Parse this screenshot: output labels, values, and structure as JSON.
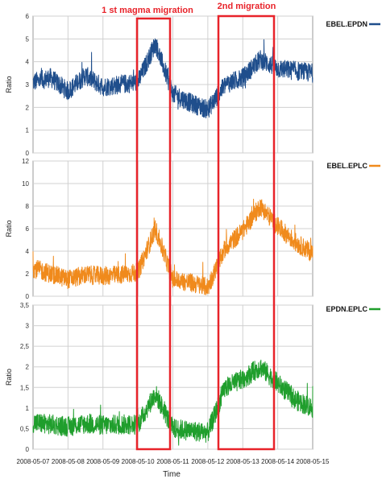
{
  "annotations": {
    "first_migration": "1 st magma migration",
    "second_migration": "2nd migration",
    "highlight_color": "#e8232a"
  },
  "x_axis": {
    "label": "Time",
    "tick_labels": [
      "2008-05-07",
      "2008-05-08",
      "2008-05-09",
      "2008-05-10",
      "2008-05-11",
      "2008-05-12",
      "2008-05-13",
      "2008-05-14",
      "2008-05-15"
    ]
  },
  "chart_data": [
    {
      "type": "line",
      "series": [
        {
          "name": "EBEL.EPDN",
          "color": "#1f4e8c"
        }
      ],
      "ylabel": "Ratio",
      "ylim": [
        0,
        6
      ],
      "y_ticks": [
        "0",
        "1",
        "2",
        "3",
        "4",
        "5",
        "6"
      ],
      "grid": true,
      "legend_position": "right",
      "x": [
        "2008-05-07",
        "2008-05-07T12",
        "2008-05-08",
        "2008-05-08T12",
        "2008-05-09",
        "2008-05-09T12",
        "2008-05-10",
        "2008-05-10T12",
        "2008-05-11",
        "2008-05-11T12",
        "2008-05-12",
        "2008-05-12T12",
        "2008-05-13",
        "2008-05-13T12",
        "2008-05-14",
        "2008-05-14T12",
        "2008-05-15"
      ],
      "values": [
        3.1,
        3.3,
        2.7,
        3.4,
        2.9,
        3.0,
        3.1,
        4.8,
        2.6,
        2.2,
        1.9,
        3.0,
        3.3,
        4.1,
        3.7,
        3.6,
        3.5
      ]
    },
    {
      "type": "line",
      "series": [
        {
          "name": "EBEL.EPLC",
          "color": "#f08a1c"
        }
      ],
      "ylabel": "Ratio",
      "ylim": [
        0,
        12
      ],
      "y_ticks": [
        "0",
        "2",
        "4",
        "6",
        "8",
        "10",
        "12"
      ],
      "grid": true,
      "legend_position": "right",
      "x": [
        "2008-05-07",
        "2008-05-07T12",
        "2008-05-08",
        "2008-05-08T12",
        "2008-05-09",
        "2008-05-09T12",
        "2008-05-10",
        "2008-05-10T12",
        "2008-05-11",
        "2008-05-11T12",
        "2008-05-12",
        "2008-05-12T12",
        "2008-05-13",
        "2008-05-13T12",
        "2008-05-14",
        "2008-05-14T12",
        "2008-05-15"
      ],
      "values": [
        2.5,
        2.0,
        1.5,
        1.9,
        1.8,
        1.9,
        2.1,
        6.0,
        1.5,
        1.2,
        0.8,
        4.3,
        5.8,
        8.0,
        6.2,
        4.8,
        3.8
      ]
    },
    {
      "type": "line",
      "series": [
        {
          "name": "EPDN.EPLC",
          "color": "#1f9e2c"
        }
      ],
      "ylabel": "Ratio",
      "ylim": [
        0,
        3.5
      ],
      "y_ticks": [
        "0",
        "0,5",
        "1",
        "1,5",
        "2",
        "2,5",
        "3",
        "3,5"
      ],
      "grid": true,
      "legend_position": "right",
      "x": [
        "2008-05-07",
        "2008-05-07T12",
        "2008-05-08",
        "2008-05-08T12",
        "2008-05-09",
        "2008-05-09T12",
        "2008-05-10",
        "2008-05-10T12",
        "2008-05-11",
        "2008-05-11T12",
        "2008-05-12",
        "2008-05-12T12",
        "2008-05-13",
        "2008-05-13T12",
        "2008-05-14",
        "2008-05-14T12",
        "2008-05-15"
      ],
      "values": [
        0.65,
        0.6,
        0.55,
        0.62,
        0.58,
        0.6,
        0.6,
        1.35,
        0.5,
        0.45,
        0.4,
        1.5,
        1.7,
        2.0,
        1.6,
        1.2,
        1.0
      ]
    }
  ]
}
